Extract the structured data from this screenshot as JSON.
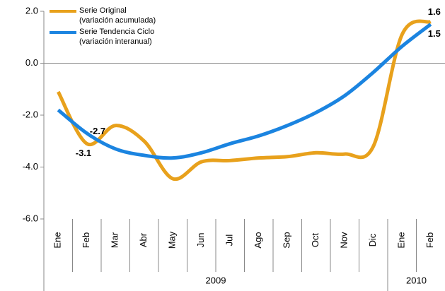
{
  "chart_data": {
    "type": "line",
    "groups": [
      {
        "label": "2009",
        "categories": [
          "Ene",
          "Feb",
          "Mar",
          "Abr",
          "May",
          "Jun",
          "Jul",
          "Ago",
          "Sep",
          "Oct",
          "Nov",
          "Dic"
        ]
      },
      {
        "label": "2010",
        "categories": [
          "Ene",
          "Feb"
        ]
      }
    ],
    "series": [
      {
        "name": "Serie Original\n(variación acumulada)",
        "color": "#e8a11c",
        "values": [
          -1.1,
          -3.1,
          -2.4,
          -3.0,
          -4.45,
          -3.8,
          -3.75,
          -3.65,
          -3.6,
          -3.45,
          -3.5,
          -3.2,
          1.1,
          1.6
        ],
        "value_labels": [
          null,
          "-3.1",
          null,
          null,
          null,
          null,
          null,
          null,
          null,
          null,
          null,
          null,
          null,
          "1.6"
        ]
      },
      {
        "name": "Serie Tendencia  Ciclo\n(variación interanual)",
        "color": "#1b84e0",
        "values": [
          -1.8,
          -2.7,
          -3.3,
          -3.55,
          -3.65,
          -3.45,
          -3.1,
          -2.8,
          -2.4,
          -1.9,
          -1.25,
          -0.35,
          0.65,
          1.5
        ],
        "value_labels": [
          null,
          "-2.7",
          null,
          null,
          null,
          null,
          null,
          null,
          null,
          null,
          null,
          null,
          null,
          "1.5"
        ]
      }
    ],
    "ylim": [
      -6,
      2
    ],
    "yticks": [
      {
        "value": -6,
        "label": "-6.0"
      },
      {
        "value": -4,
        "label": "-4.0"
      },
      {
        "value": -2,
        "label": "-2.0"
      },
      {
        "value": 0,
        "label": "0.0"
      },
      {
        "value": 2,
        "label": "2.0"
      }
    ]
  }
}
